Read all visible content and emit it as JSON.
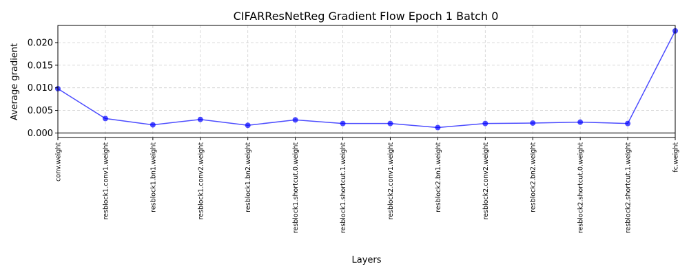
{
  "chart_data": {
    "type": "line",
    "title": "CIFARResNetReg Gradient Flow Epoch 1 Batch 0",
    "xlabel": "Layers",
    "ylabel": "Average gradient",
    "categories": [
      "conv.weight",
      "resblock1.conv1.weight",
      "resblock1.bn1.weight",
      "resblock1.conv2.weight",
      "resblock1.bn2.weight",
      "resblock1.shortcut.0.weight",
      "resblock1.shortcut.1.weight",
      "resblock2.conv1.weight",
      "resblock2.bn1.weight",
      "resblock2.conv2.weight",
      "resblock2.bn2.weight",
      "resblock2.shortcut.0.weight",
      "resblock2.shortcut.1.weight",
      "fc.weight"
    ],
    "series": [
      {
        "values": [
          0.0098,
          0.0032,
          0.0018,
          0.003,
          0.0017,
          0.0029,
          0.0021,
          0.0021,
          0.0012,
          0.0021,
          0.0022,
          0.0024,
          0.0021,
          0.0226
        ],
        "color": "#0000ff"
      }
    ],
    "ylim": [
      -0.001,
      0.0238
    ],
    "yticks": [
      "0.000",
      "0.005",
      "0.010",
      "0.015",
      "0.020"
    ],
    "grid": true,
    "baseline": 0
  }
}
